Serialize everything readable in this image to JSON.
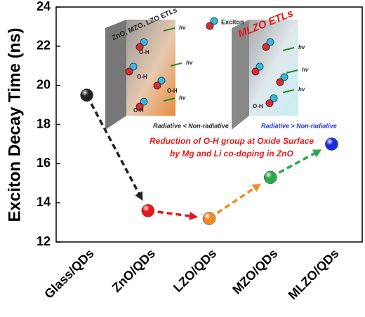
{
  "chart_data": {
    "type": "scatter",
    "y_label": "Exciton Decay Time (ns)",
    "categories": [
      "Glass/QDs",
      "ZnO/QDs",
      "LZO/QDs",
      "MZO/QDs",
      "MLZO/QDs"
    ],
    "values": [
      19.5,
      13.6,
      13.2,
      15.3,
      17.0
    ],
    "colors": [
      "#222222",
      "#e8161b",
      "#f08a24",
      "#2aa84a",
      "#1a2ee0"
    ],
    "ylim": [
      12,
      24
    ],
    "yticks": [
      12,
      14,
      16,
      18,
      20,
      22,
      24
    ],
    "inset": {
      "left_panel": "ZnO, MZO, LZO ETLs",
      "right_panel": "MLZO ETLs",
      "legend": "Exciton",
      "left_caption": "Radiative < Non-radiative",
      "right_caption": "Radiative > Non-radiative",
      "caption": [
        "Reduction of O-H group at Oxide Surface",
        "by Mg and Li co-doping in ZnO"
      ],
      "group_label": "O-H",
      "photon_label": "hv"
    }
  }
}
